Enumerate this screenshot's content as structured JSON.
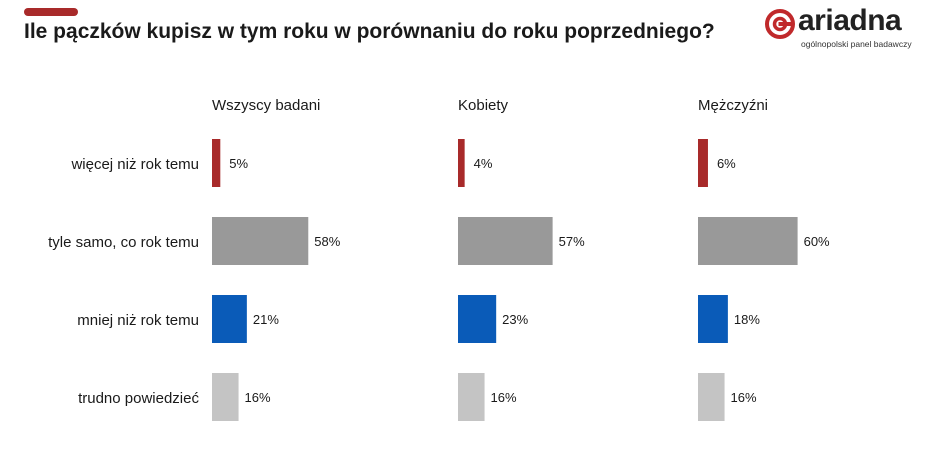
{
  "header": {
    "title": "Ile pączków kupisz w tym roku w porównaniu do roku poprzedniego?"
  },
  "logo": {
    "wordmark": "ariadna",
    "tagline": "ogólnopolski panel badawczy"
  },
  "colors": {
    "accent": "#a82a2a",
    "more": "#a82a2a",
    "same": "#999999",
    "less": "#0a5bb8",
    "hard_to_say": "#c4c4c4"
  },
  "chart_data": {
    "type": "bar",
    "orientation": "horizontal",
    "categories": [
      "więcej niż rok temu",
      "tyle samo, co rok temu",
      "mniej niż rok temu",
      "trudno powiedzieć"
    ],
    "category_colors": [
      "#a82a2a",
      "#999999",
      "#0a5bb8",
      "#c4c4c4"
    ],
    "value_suffix": "%",
    "xlim": [
      0,
      100
    ],
    "series": [
      {
        "name": "Wszyscy badani",
        "values": [
          5,
          58,
          21,
          16
        ]
      },
      {
        "name": "Kobiety",
        "values": [
          4,
          57,
          23,
          16
        ]
      },
      {
        "name": "Mężczyźni",
        "values": [
          6,
          60,
          18,
          16
        ]
      }
    ]
  }
}
